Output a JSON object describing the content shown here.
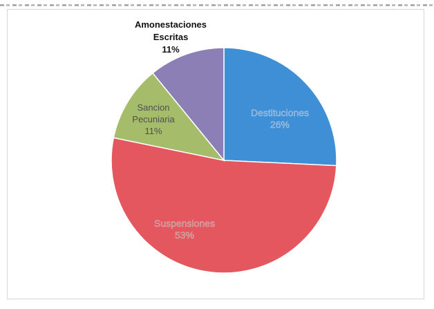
{
  "chart_data": {
    "type": "pie",
    "title": "",
    "slices": [
      {
        "label": "Destituciones",
        "percent_label": "26%",
        "value": 26,
        "color": "#3f8fd6",
        "label_color": "#7fa7d2"
      },
      {
        "label": "Suspensiones",
        "percent_label": "53%",
        "value": 53,
        "color": "#e4575f",
        "label_color": "#b98a8c"
      },
      {
        "label": "Sancion Pecuniaria",
        "percent_label": "11%",
        "value": 11,
        "color": "#a5bd6a",
        "label_color": "#4f4f4f"
      },
      {
        "label": "Amonestaciones Escritas",
        "percent_label": "11%",
        "value": 11,
        "color": "#8c7fb5",
        "label_color": "#111111"
      }
    ],
    "legend": "none"
  }
}
